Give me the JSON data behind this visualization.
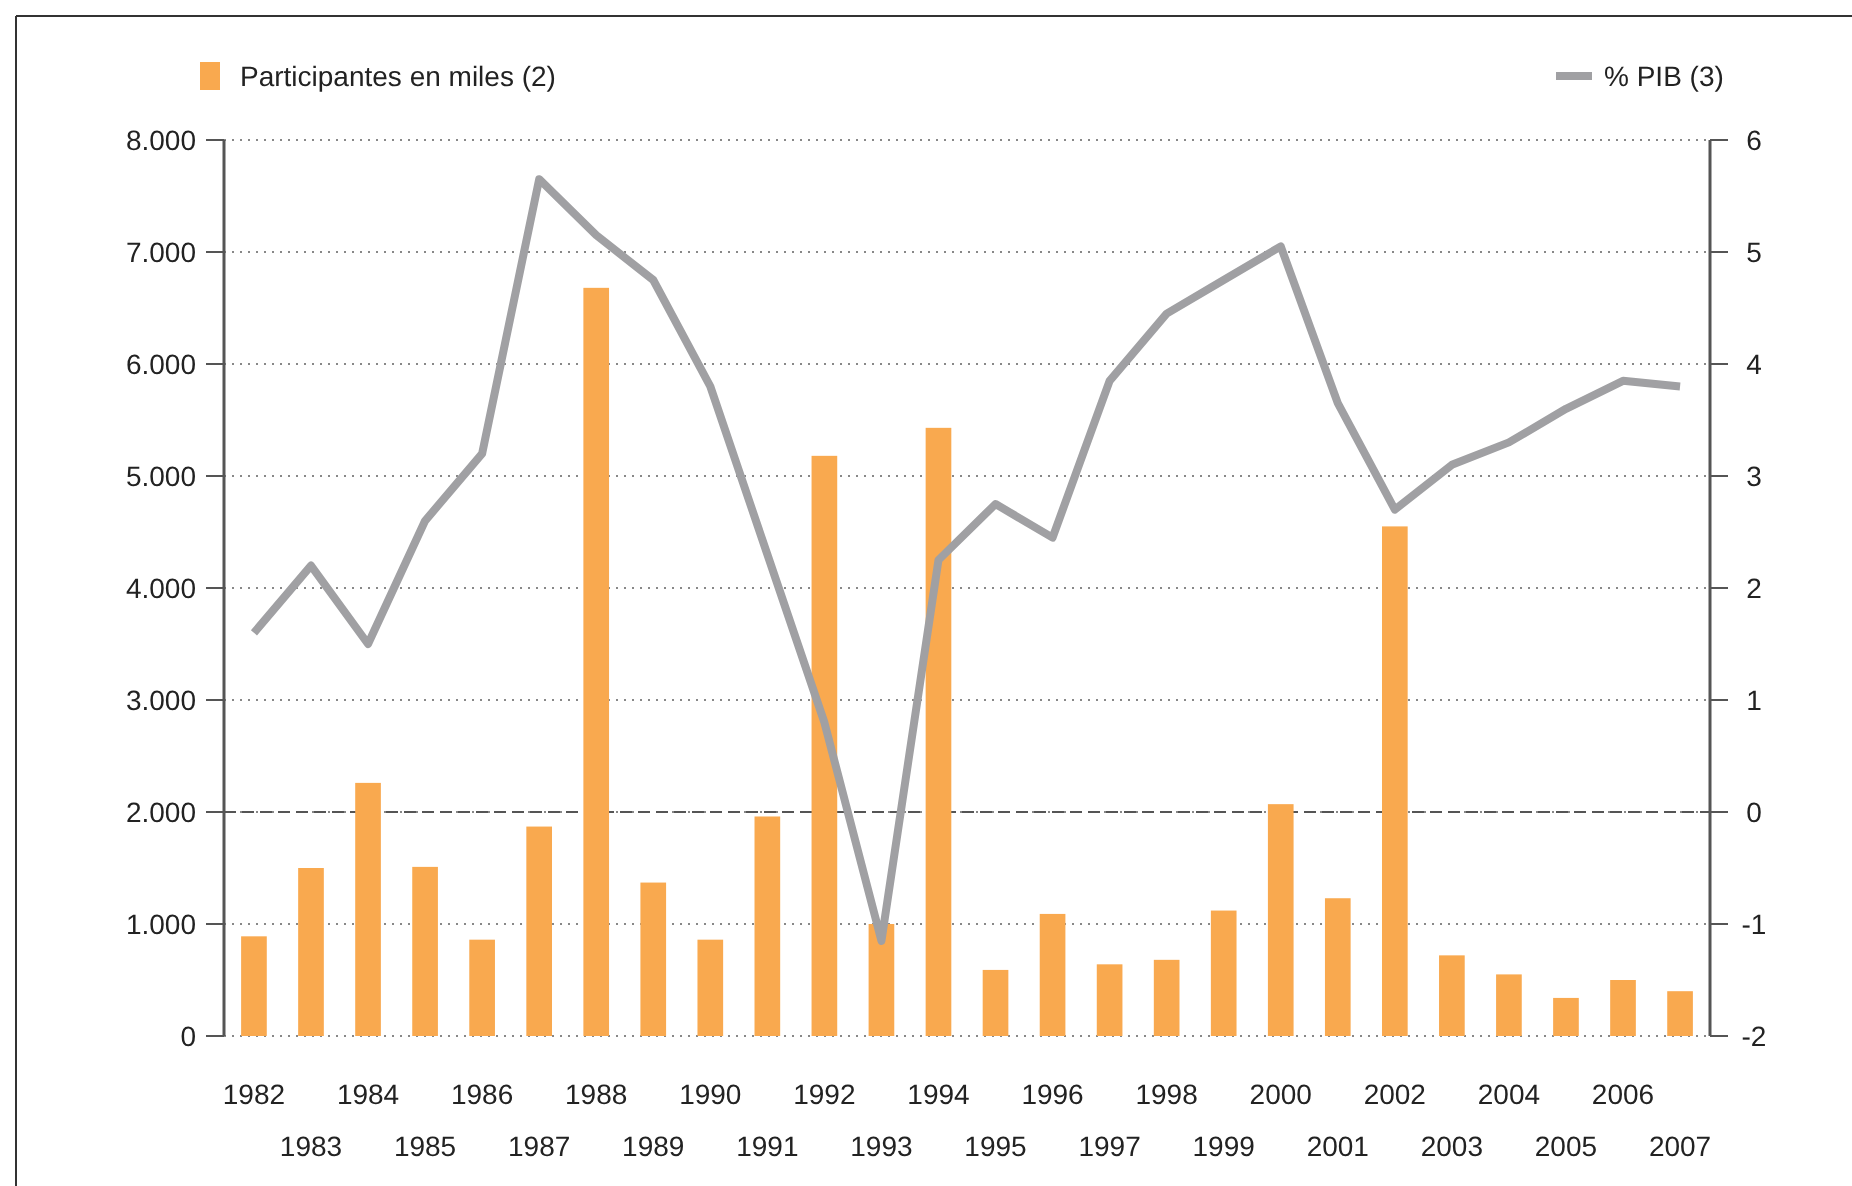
{
  "chart_data": {
    "type": "bar",
    "categories": [
      "1982",
      "1983",
      "1984",
      "1985",
      "1986",
      "1987",
      "1988",
      "1989",
      "1990",
      "1991",
      "1992",
      "1993",
      "1994",
      "1995",
      "1996",
      "1997",
      "1998",
      "1999",
      "2000",
      "2001",
      "2002",
      "2003",
      "2004",
      "2005",
      "2006",
      "2007"
    ],
    "series": [
      {
        "name": "Participantes en miles (2)",
        "color": "#f9a94f",
        "values": [
          890,
          1500,
          2260,
          1510,
          860,
          1870,
          6680,
          1370,
          860,
          1960,
          5180,
          1000,
          5430,
          590,
          1090,
          640,
          680,
          1120,
          2070,
          1230,
          4550,
          720,
          550,
          340,
          500,
          400
        ]
      },
      {
        "name": "% PIB (3)",
        "type": "line",
        "axis": "y2",
        "color": "#a0a0a3",
        "values": [
          1.6,
          2.2,
          1.5,
          2.6,
          3.2,
          5.65,
          5.15,
          4.75,
          3.8,
          2.3,
          0.8,
          -1.15,
          2.25,
          2.75,
          2.45,
          3.85,
          4.45,
          4.75,
          5.05,
          3.65,
          2.7,
          3.1,
          3.3,
          3.6,
          3.85,
          3.8
        ]
      }
    ],
    "ylim": [
      0,
      8000
    ],
    "yticks": [
      {
        "value": 0,
        "label": "0"
      },
      {
        "value": 1000,
        "label": "1.000"
      },
      {
        "value": 2000,
        "label": "2.000"
      },
      {
        "value": 3000,
        "label": "3.000"
      },
      {
        "value": 4000,
        "label": "4.000"
      },
      {
        "value": 5000,
        "label": "5.000"
      },
      {
        "value": 6000,
        "label": "6.000"
      },
      {
        "value": 7000,
        "label": "7.000"
      },
      {
        "value": 8000,
        "label": "8.000"
      }
    ],
    "y2lim": [
      -2,
      6
    ],
    "y2ticks": [
      -2,
      -1,
      0,
      1,
      2,
      3,
      4,
      5,
      6
    ],
    "ref_lines": [
      {
        "axis": "y2",
        "value": 0,
        "color": "#555555",
        "line_style": "dashed"
      }
    ],
    "grid": "y",
    "legend": "top",
    "line_style": "solid",
    "marker": "none"
  }
}
